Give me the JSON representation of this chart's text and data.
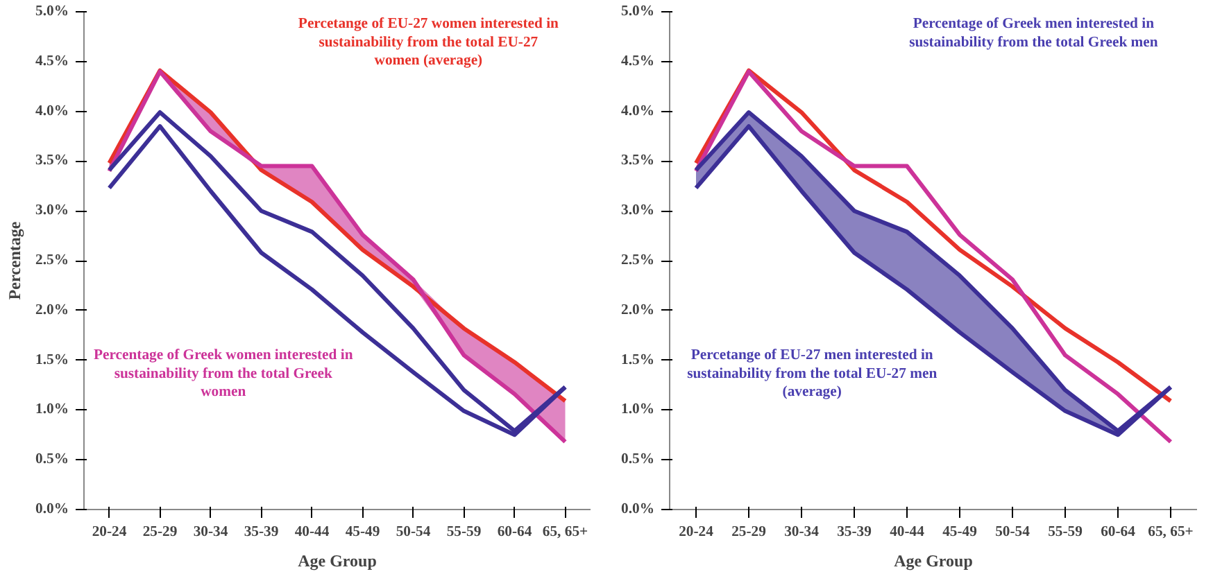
{
  "chart_data": [
    {
      "type": "line",
      "xlabel": "Age Group",
      "ylabel": "Percentage",
      "categories": [
        "20-24",
        "25-29",
        "30-34",
        "35-39",
        "40-44",
        "45-49",
        "50-54",
        "55-59",
        "60-64",
        "65, 65+"
      ],
      "series": [
        {
          "color": "#e8322a",
          "values": [
            3.48,
            4.41,
            3.99,
            3.41,
            3.09,
            2.61,
            2.24,
            1.82,
            1.48,
            1.09
          ]
        },
        {
          "color": "#cc3399",
          "values": [
            3.4,
            4.4,
            3.8,
            3.45,
            3.45,
            2.76,
            2.31,
            1.55,
            1.16,
            0.68
          ],
          "lower": [
            3.4,
            4.4,
            3.8,
            3.41,
            3.09,
            2.61,
            2.24,
            1.55,
            1.16,
            0.68
          ],
          "upper": [
            3.48,
            4.41,
            3.99,
            3.45,
            3.45,
            2.76,
            2.31,
            1.82,
            1.48,
            1.09
          ]
        },
        {
          "color": "#3c2f96",
          "values": [
            3.41,
            3.99,
            3.55,
            3.0,
            2.79,
            2.35,
            1.82,
            1.2,
            0.79,
            1.23
          ]
        },
        {
          "color": "#3c2f96",
          "values": [
            3.23,
            3.85,
            3.2,
            2.58,
            2.21,
            1.78,
            1.38,
            0.99,
            0.75,
            1.23
          ]
        }
      ],
      "ylim": [
        0,
        5
      ],
      "yticks": [
        {
          "value": 0,
          "label": "0.0%"
        },
        {
          "value": 0.5,
          "label": "0.5%"
        },
        {
          "value": 1,
          "label": "1.0%"
        },
        {
          "value": 1.5,
          "label": "1.5%"
        },
        {
          "value": 2,
          "label": "2.0%"
        },
        {
          "value": 2.5,
          "label": "2.5%"
        },
        {
          "value": 3,
          "label": "3.0%"
        },
        {
          "value": 3.5,
          "label": "3.5%"
        },
        {
          "value": 4,
          "label": "4.0%"
        },
        {
          "value": 4.5,
          "label": "4.5%"
        },
        {
          "value": 5,
          "label": "5.0%"
        }
      ],
      "grid": false,
      "marker": "none",
      "line_style": "solid",
      "annotations": [
        "Percetange of EU-27 women interested in sustainability from the total EU-27 women (average)",
        "Percentage of Greek women interested in sustainability from the total Greek women"
      ]
    },
    {
      "type": "line",
      "xlabel": "Age Group",
      "categories": [
        "20-24",
        "25-29",
        "30-34",
        "35-39",
        "40-44",
        "45-49",
        "50-54",
        "55-59",
        "60-64",
        "65, 65+"
      ],
      "series": [
        {
          "color": "#e8322a",
          "values": [
            3.48,
            4.41,
            3.99,
            3.41,
            3.09,
            2.61,
            2.24,
            1.82,
            1.48,
            1.09
          ]
        },
        {
          "color": "#cc3399",
          "values": [
            3.4,
            4.4,
            3.8,
            3.45,
            3.45,
            2.76,
            2.31,
            1.55,
            1.16,
            0.68
          ]
        },
        {
          "color": "#3c2f96",
          "values": [
            3.41,
            3.99,
            3.55,
            3.0,
            2.79,
            2.35,
            1.82,
            1.2,
            0.79,
            1.23
          ],
          "lower": [
            3.23,
            3.85,
            3.2,
            2.58,
            2.21,
            1.78,
            1.38,
            0.99,
            0.75,
            1.23
          ],
          "upper": [
            3.41,
            3.99,
            3.55,
            3.0,
            2.79,
            2.35,
            1.82,
            1.2,
            0.79,
            1.23
          ]
        },
        {
          "color": "#3c2f96",
          "values": [
            3.23,
            3.85,
            3.2,
            2.58,
            2.21,
            1.78,
            1.38,
            0.99,
            0.75,
            1.23
          ]
        }
      ],
      "ylim": [
        0,
        5
      ],
      "yticks": [
        {
          "value": 0,
          "label": "0.0%"
        },
        {
          "value": 0.5,
          "label": "0.5%"
        },
        {
          "value": 1,
          "label": "1.0%"
        },
        {
          "value": 1.5,
          "label": "1.5%"
        },
        {
          "value": 2,
          "label": "2.0%"
        },
        {
          "value": 2.5,
          "label": "2.5%"
        },
        {
          "value": 3,
          "label": "3.0%"
        },
        {
          "value": 3.5,
          "label": "3.5%"
        },
        {
          "value": 4,
          "label": "4.0%"
        },
        {
          "value": 4.5,
          "label": "4.5%"
        },
        {
          "value": 5,
          "label": "5.0%"
        }
      ],
      "grid": false,
      "marker": "none",
      "line_style": "solid",
      "annotations": [
        "Percentage of Greek men interested in sustainability from the total Greek men",
        "Percetange of EU-27 men interested in sustainability from the total EU-27 men (average)"
      ]
    }
  ]
}
